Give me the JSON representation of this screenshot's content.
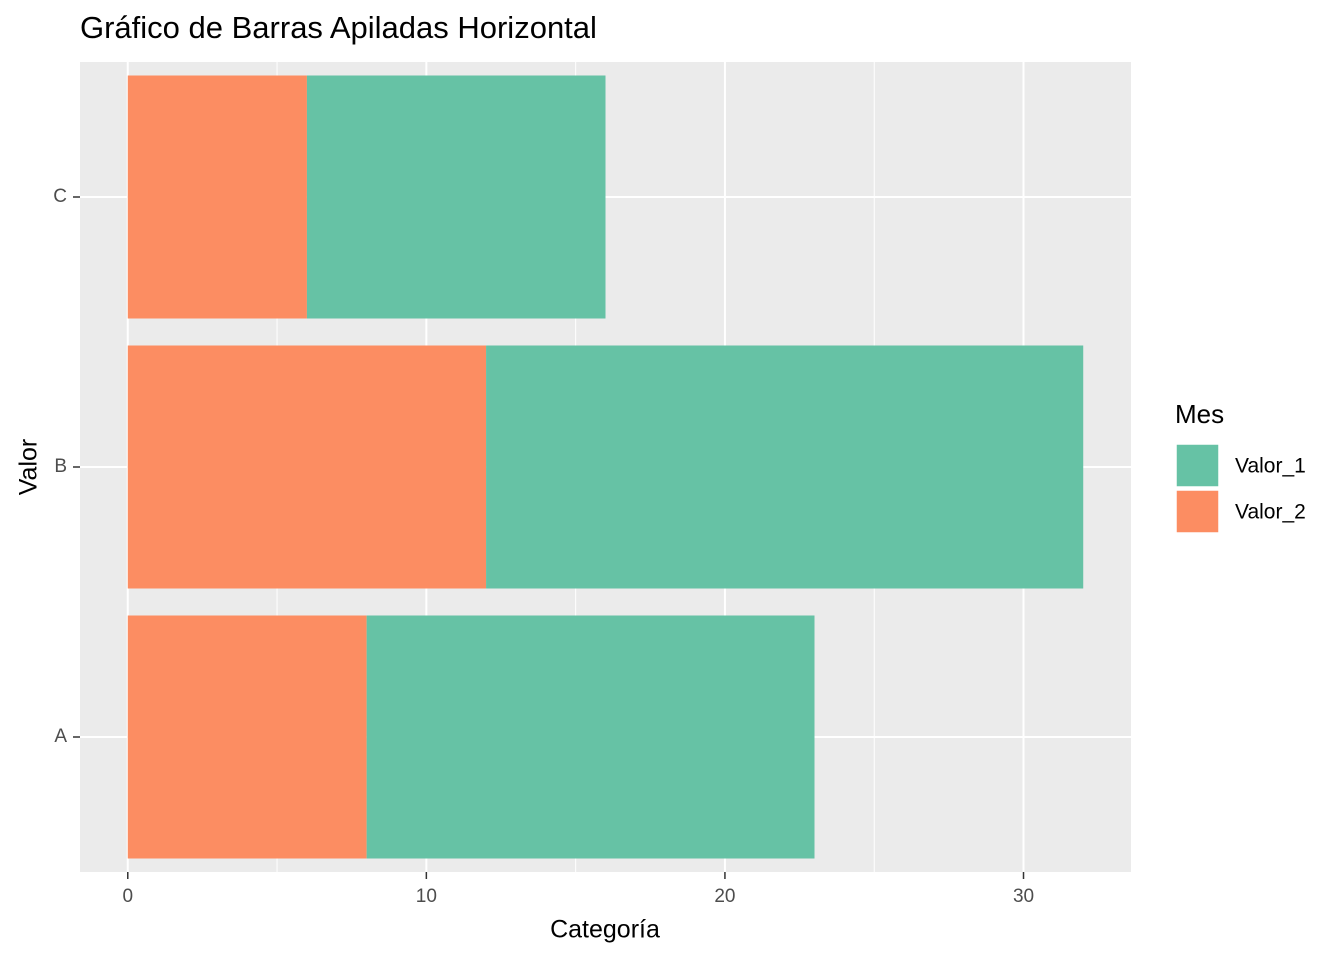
{
  "chart_data": {
    "type": "bar",
    "orientation": "horizontal",
    "stacked": true,
    "title": "Gráfico de Barras Apiladas Horizontal",
    "x_label": "Categoría",
    "y_label": "Valor",
    "categories": [
      "A",
      "B",
      "C"
    ],
    "series": [
      {
        "name": "Valor_1",
        "color": "#66c2a5",
        "values": [
          15,
          20,
          10
        ]
      },
      {
        "name": "Valor_2",
        "color": "#fc8d62",
        "values": [
          8,
          12,
          6
        ]
      }
    ],
    "legend_title": "Mes",
    "legend": "right",
    "xlim": [
      -1.6,
      33.6
    ],
    "xticks": [
      0,
      10,
      20,
      30
    ],
    "minor_xticks": [
      5,
      15,
      25
    ],
    "grid": true
  }
}
